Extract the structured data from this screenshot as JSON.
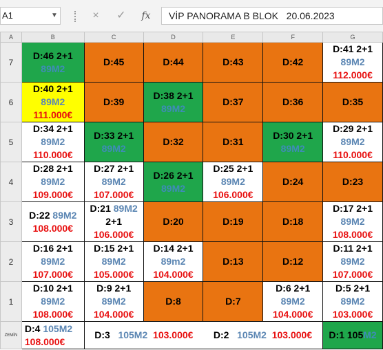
{
  "formula_bar": {
    "name_box": "A1",
    "cancel_icon": "×",
    "confirm_icon": "✓",
    "fx_icon": "fx",
    "formula": "VİP PANORAMA B BLOK   20.06.2023"
  },
  "columns": [
    "A",
    "B",
    "C",
    "D",
    "E",
    "F",
    "G"
  ],
  "colors": {
    "orange": "#E97411",
    "green": "#1FA64B",
    "yellow": "#FFFF00",
    "size_blue": "#5B86B3",
    "price_red": "#E81010"
  },
  "rows": [
    {
      "label": "7",
      "cells": [
        {
          "fill": "green",
          "unit": "D:46  2+1",
          "size": "89M2"
        },
        {
          "fill": "orange",
          "unit": "D:45"
        },
        {
          "fill": "orange",
          "unit": "D:44"
        },
        {
          "fill": "orange",
          "unit": "D:43"
        },
        {
          "fill": "orange",
          "unit": "D:42"
        },
        {
          "fill": "white",
          "unit": "D:41  2+1",
          "size": "89M2",
          "price": "112.000€"
        }
      ]
    },
    {
      "label": "6",
      "cells": [
        {
          "fill": "yellow",
          "unit": "D:40 2+1",
          "size": "89M2",
          "price": "111.000€"
        },
        {
          "fill": "orange",
          "unit": "D:39"
        },
        {
          "fill": "green",
          "unit": "D:38  2+1",
          "size": "89M2"
        },
        {
          "fill": "orange",
          "unit": "D:37"
        },
        {
          "fill": "orange",
          "unit": "D:36"
        },
        {
          "fill": "orange",
          "unit": "D:35"
        }
      ]
    },
    {
      "label": "5",
      "cells": [
        {
          "fill": "white",
          "unit": "D:34 2+1",
          "size": "89M2",
          "price": "110.000€"
        },
        {
          "fill": "green",
          "unit": "D:33 2+1",
          "size": "89M2"
        },
        {
          "fill": "orange",
          "unit": "D:32"
        },
        {
          "fill": "orange",
          "unit": "D:31"
        },
        {
          "fill": "green",
          "unit": "D:30  2+1",
          "size": "89M2"
        },
        {
          "fill": "white",
          "unit": "D:29 2+1",
          "size": "89M2",
          "price": "110.000€"
        }
      ]
    },
    {
      "label": "4",
      "cells": [
        {
          "fill": "white",
          "unit": "D:28 2+1",
          "size": "89M2",
          "price": "109.000€"
        },
        {
          "fill": "white",
          "unit": "D:27  2+1",
          "size": "89M2",
          "price": "107.000€"
        },
        {
          "fill": "green",
          "unit": "D:26  2+1",
          "size": "89M2"
        },
        {
          "fill": "white",
          "unit": "D:25  2+1",
          "size": "89M2",
          "price": "106.000€"
        },
        {
          "fill": "orange",
          "unit": "D:24"
        },
        {
          "fill": "orange",
          "unit": "D:23"
        }
      ]
    },
    {
      "label": "3",
      "cells": [
        {
          "fill": "white",
          "unit": "D:22",
          "size": "89M2",
          "price": "108.000€",
          "inline": true
        },
        {
          "fill": "white",
          "unit": "D:21",
          "size": "89M2",
          "rooms": "2+1",
          "price": "106.000€",
          "split": true
        },
        {
          "fill": "orange",
          "unit": "D:20"
        },
        {
          "fill": "orange",
          "unit": "D:19"
        },
        {
          "fill": "orange",
          "unit": "D:18"
        },
        {
          "fill": "white",
          "unit": "D:17  2+1",
          "size": "89M2",
          "price": "108.000€"
        }
      ]
    },
    {
      "label": "2",
      "cells": [
        {
          "fill": "white",
          "unit": "D:16 2+1",
          "size": "89M2",
          "price": "107.000€"
        },
        {
          "fill": "white",
          "unit": "D:15  2+1",
          "size": "89M2",
          "price": "105.000€"
        },
        {
          "fill": "white",
          "unit": "D:14  2+1",
          "size": "89m2",
          "price": "104.000€"
        },
        {
          "fill": "orange",
          "unit": "D:13"
        },
        {
          "fill": "orange",
          "unit": "D:12"
        },
        {
          "fill": "white",
          "unit": "D:11 2+1",
          "size": "89M2",
          "price": "107.000€"
        }
      ]
    },
    {
      "label": "1",
      "cells": [
        {
          "fill": "white",
          "unit": "D:10 2+1",
          "size": "89M2",
          "price": "108.000€"
        },
        {
          "fill": "white",
          "unit": "D:9  2+1",
          "size": "89M2",
          "price": "104.000€"
        },
        {
          "fill": "orange",
          "unit": "D:8"
        },
        {
          "fill": "orange",
          "unit": "D:7"
        },
        {
          "fill": "white",
          "unit": "D:6 2+1",
          "size": "89M2",
          "price": "104.000€"
        },
        {
          "fill": "white",
          "unit": "D:5 2+1",
          "size": "89M2",
          "price": "103.000€"
        }
      ]
    }
  ],
  "zemin": {
    "label": "ZEMİN",
    "d4": {
      "unit": "D:4",
      "size": "105M2",
      "price": "108.000€"
    },
    "d3": {
      "unit": "D:3",
      "size": "105M2",
      "price": "103.000€"
    },
    "d2": {
      "unit": "D:2",
      "size": "105M2",
      "price": "103.000€"
    },
    "d1": {
      "unit": "D:1",
      "size_part1": "105",
      "size_part2": "M2"
    }
  }
}
